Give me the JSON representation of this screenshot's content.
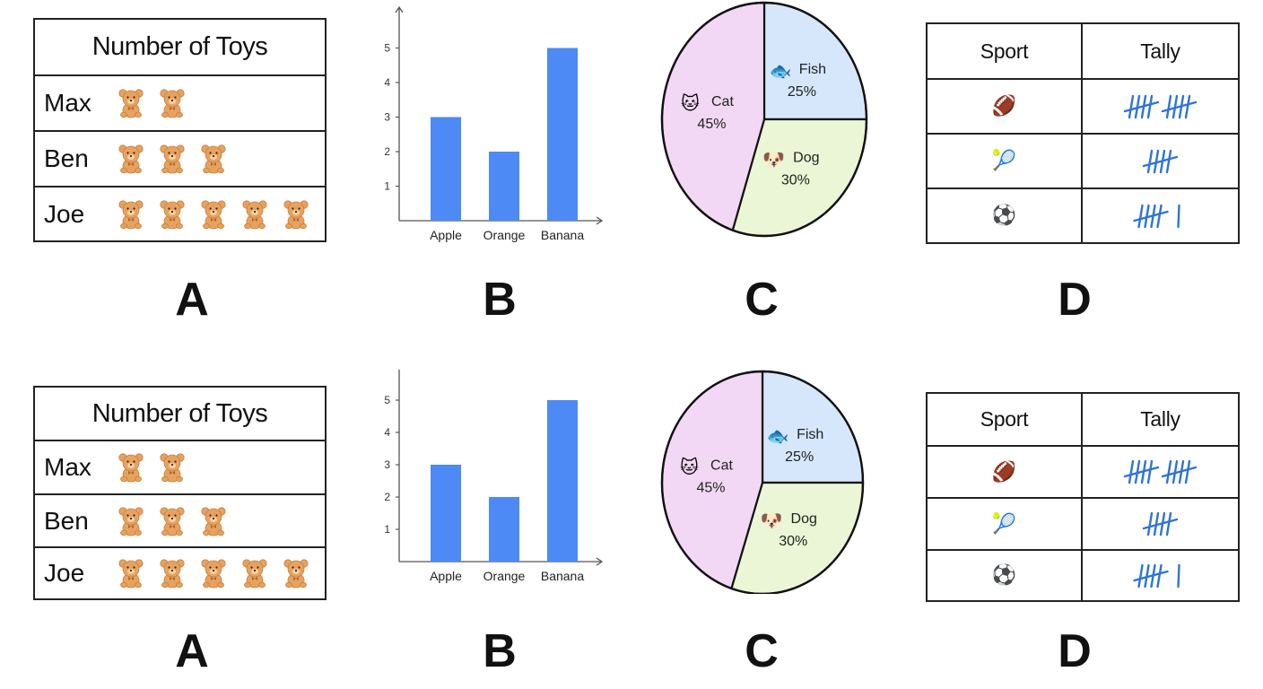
{
  "panels": [
    {
      "pictograph": {
        "title": "Number of Toys",
        "icon": "teddy-bear-icon",
        "rows": [
          {
            "name": "Max",
            "count": 2
          },
          {
            "name": "Ben",
            "count": 3
          },
          {
            "name": "Joe",
            "count": 5
          }
        ]
      },
      "letters": [
        "A",
        "B",
        "C",
        "D"
      ],
      "tally_table": {
        "headers": [
          "Sport",
          "Tally"
        ],
        "rows": [
          {
            "sport_icon": "football-icon",
            "glyph": "🏈",
            "tally": 10
          },
          {
            "sport_icon": "tennis-ball-icon",
            "glyph": "🎾",
            "tally": 5
          },
          {
            "sport_icon": "soccer-ball-icon",
            "glyph": "⚽",
            "tally": 6
          }
        ]
      }
    },
    {
      "pictograph": {
        "title": "Number of Toys",
        "icon": "teddy-bear-icon",
        "rows": [
          {
            "name": "Max",
            "count": 2
          },
          {
            "name": "Ben",
            "count": 3
          },
          {
            "name": "Joe",
            "count": 5
          }
        ]
      },
      "letters": [
        "A",
        "B",
        "C",
        "D"
      ],
      "tally_table": {
        "headers": [
          "Sport",
          "Tally"
        ],
        "rows": [
          {
            "sport_icon": "football-icon",
            "glyph": "🏈",
            "tally": 10
          },
          {
            "sport_icon": "tennis-ball-icon",
            "glyph": "🎾",
            "tally": 5
          },
          {
            "sport_icon": "soccer-ball-icon",
            "glyph": "⚽",
            "tally": 6
          }
        ]
      }
    }
  ],
  "chart_data": [
    {
      "type": "bar",
      "categories": [
        "Apple",
        "Orange",
        "Banana"
      ],
      "values": [
        3,
        2,
        5
      ],
      "yticks": [
        "1",
        "2",
        "3",
        "4",
        "5"
      ],
      "ylim": [
        0,
        6
      ],
      "bar_color": "#4d8af5"
    },
    {
      "type": "pie",
      "slices": [
        {
          "label": "Fish",
          "pct_label": "25%",
          "value": 25,
          "icon": "fish-icon",
          "glyph": "🐟",
          "color": "#d6e7fb"
        },
        {
          "label": "Dog",
          "pct_label": "30%",
          "value": 30,
          "icon": "dog-icon",
          "glyph": "🐶",
          "color": "#eaf6d6"
        },
        {
          "label": "Cat",
          "pct_label": "45%",
          "value": 45,
          "icon": "cat-icon",
          "glyph": "🐱",
          "color": "#f3d8f5"
        }
      ]
    },
    {
      "type": "bar",
      "categories": [
        "Apple",
        "Orange",
        "Banana"
      ],
      "values": [
        3,
        2,
        5
      ],
      "yticks": [
        "1",
        "2",
        "3",
        "4",
        "5"
      ],
      "ylim": [
        0,
        6
      ],
      "bar_color": "#4d8af5"
    },
    {
      "type": "pie",
      "slices": [
        {
          "label": "Fish",
          "pct_label": "25%",
          "value": 25,
          "icon": "fish-icon",
          "glyph": "🐟",
          "color": "#d6e7fb"
        },
        {
          "label": "Dog",
          "pct_label": "30%",
          "value": 30,
          "icon": "dog-icon",
          "glyph": "🐶",
          "color": "#eaf6d6"
        },
        {
          "label": "Cat",
          "pct_label": "45%",
          "value": 45,
          "icon": "cat-icon",
          "glyph": "🐱",
          "color": "#f3d8f5"
        }
      ]
    }
  ]
}
